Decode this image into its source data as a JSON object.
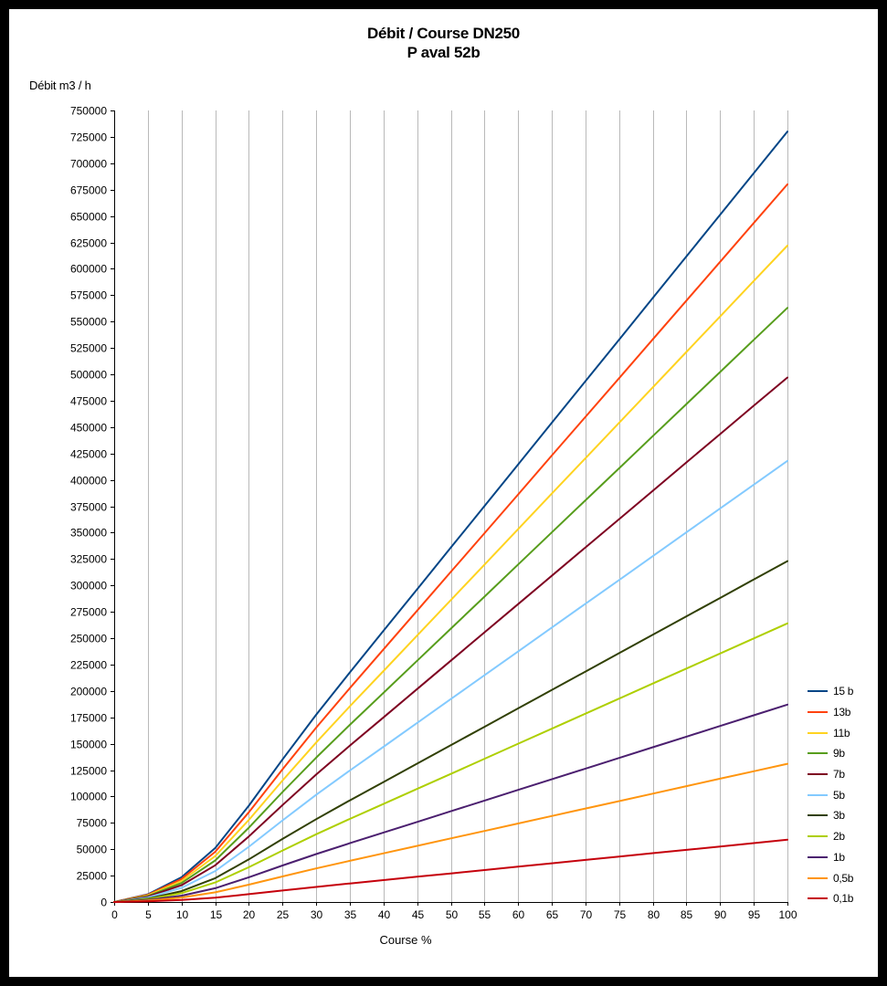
{
  "title": {
    "line1": "Débit / Course DN250",
    "line2": "P aval 52b"
  },
  "axes": {
    "y_unit_label": "Débit m3 / h",
    "x_title": "Course %"
  },
  "colors": {
    "frame": "#000000",
    "background": "#ffffff",
    "gridline": "#b9b9b9",
    "axis": "#000000",
    "text": "#000000"
  },
  "chart_data": {
    "type": "line",
    "title": "Débit / Course DN250",
    "subtitle": "P aval 52b",
    "xlabel": "Course %",
    "ylabel": "Débit m3 / h",
    "xlim": [
      0,
      100
    ],
    "ylim": [
      0,
      750000
    ],
    "x_tick_step": 5,
    "y_tick_step": 25000,
    "grid": "vertical-only",
    "legend_position": "right",
    "x": [
      0,
      5,
      10,
      15,
      20,
      25,
      30,
      35,
      40,
      45,
      50,
      55,
      60,
      65,
      70,
      75,
      80,
      85,
      90,
      95,
      100
    ],
    "series": [
      {
        "name": "15 b",
        "color": "#004586",
        "values": [
          0,
          7300,
          23400,
          51100,
          91300,
          135100,
          177400,
          217500,
          257000,
          296400,
          335800,
          375200,
          414600,
          454100,
          493500,
          532900,
          572300,
          611700,
          651200,
          690600,
          730000
        ]
      },
      {
        "name": "13b",
        "color": "#FF420E",
        "values": [
          0,
          6800,
          21800,
          47600,
          85000,
          125800,
          165200,
          202600,
          239400,
          276100,
          312800,
          349500,
          386200,
          423000,
          459700,
          496400,
          533100,
          569800,
          606600,
          643300,
          680000
        ]
      },
      {
        "name": "11b",
        "color": "#FFD320",
        "values": [
          0,
          6200,
          19900,
          43500,
          77800,
          115100,
          151100,
          185400,
          218900,
          252500,
          286100,
          319700,
          353300,
          386900,
          420500,
          454100,
          487600,
          521200,
          554800,
          588400,
          622000
        ]
      },
      {
        "name": "9b",
        "color": "#579D1C",
        "values": [
          0,
          5600,
          18000,
          39400,
          70400,
          104200,
          136800,
          167800,
          198200,
          228600,
          259000,
          289400,
          319800,
          350200,
          380600,
          411000,
          441400,
          471800,
          502200,
          532600,
          563000
        ]
      },
      {
        "name": "7b",
        "color": "#7E0021",
        "values": [
          0,
          5000,
          15900,
          34800,
          62100,
          91900,
          120800,
          148100,
          174900,
          201800,
          228600,
          255500,
          282300,
          309100,
          336000,
          362800,
          389600,
          416500,
          443300,
          470200,
          497000
        ]
      },
      {
        "name": "5b",
        "color": "#83CAFF",
        "values": [
          0,
          4200,
          13400,
          29300,
          52300,
          77300,
          101600,
          124600,
          147100,
          169700,
          192300,
          214900,
          237400,
          260000,
          282600,
          305100,
          327700,
          350300,
          372900,
          395400,
          418000
        ]
      },
      {
        "name": "3b",
        "color": "#314004",
        "values": [
          0,
          3200,
          10300,
          22600,
          40400,
          59800,
          78500,
          96300,
          113700,
          131100,
          148600,
          166000,
          183500,
          200900,
          218300,
          235800,
          253200,
          270700,
          288100,
          305600,
          323000
        ]
      },
      {
        "name": "2b",
        "color": "#AECF00",
        "values": [
          0,
          2600,
          8400,
          18500,
          33000,
          48800,
          64200,
          78700,
          92900,
          107200,
          121400,
          135700,
          150000,
          164200,
          178500,
          192700,
          207000,
          221200,
          235500,
          249700,
          264000
        ]
      },
      {
        "name": "1b",
        "color": "#4B1F6F",
        "values": [
          0,
          1900,
          6000,
          13100,
          23400,
          34600,
          45400,
          55700,
          65800,
          75900,
          86000,
          96100,
          106200,
          116300,
          126400,
          136500,
          146600,
          156700,
          166800,
          176900,
          187000
        ]
      },
      {
        "name": "0,5b",
        "color": "#FF950E",
        "values": [
          0,
          1300,
          4200,
          9200,
          16400,
          24200,
          31800,
          39000,
          46100,
          53200,
          60300,
          67300,
          74400,
          81500,
          88600,
          95600,
          102700,
          109800,
          116900,
          123900,
          131000
        ]
      },
      {
        "name": "0,1b",
        "color": "#C5000B",
        "values": [
          0,
          600,
          1900,
          4100,
          7400,
          10900,
          14300,
          17600,
          20800,
          24000,
          27100,
          30300,
          33500,
          36700,
          39900,
          43100,
          46300,
          49400,
          52600,
          55800,
          59000
        ]
      }
    ]
  }
}
